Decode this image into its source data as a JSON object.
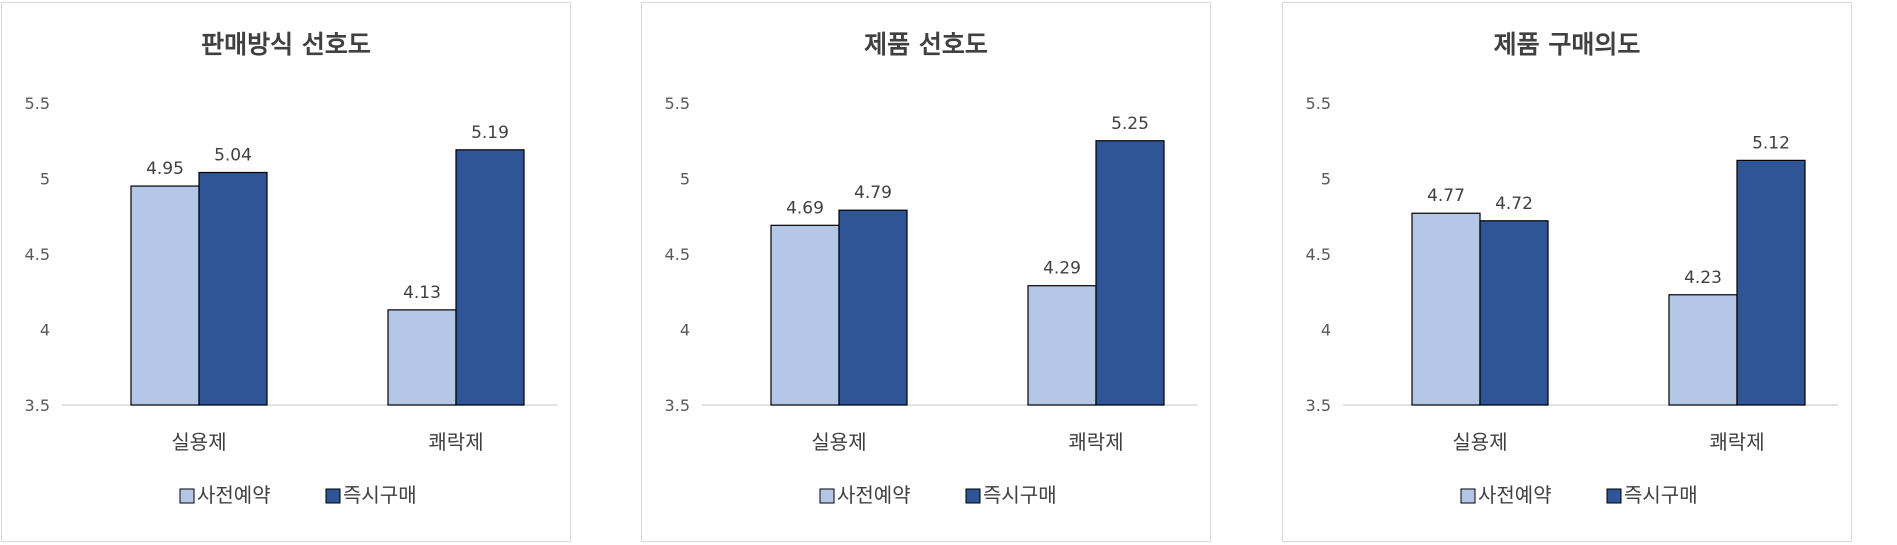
{
  "colors": {
    "pre_order": "#b4c7e7",
    "instant_buy": "#2f5597",
    "bar_stroke": "#000000",
    "axis": "#d9d9d9",
    "text": "#404040"
  },
  "chart_data": [
    {
      "type": "bar",
      "title": "판매방식 선호도",
      "categories": [
        "실용제",
        "쾌락제"
      ],
      "series": [
        {
          "name": "사전예약",
          "values": [
            4.95,
            4.13
          ]
        },
        {
          "name": "즉시구매",
          "values": [
            5.04,
            5.19
          ]
        }
      ],
      "yticks": [
        "3.5",
        "4",
        "4.5",
        "5",
        "5.5"
      ],
      "ylim": [
        3.5,
        5.5
      ],
      "grid": false,
      "legend": "bottom"
    },
    {
      "type": "bar",
      "title": "제품 선호도",
      "categories": [
        "실용제",
        "쾌락제"
      ],
      "series": [
        {
          "name": "사전예약",
          "values": [
            4.69,
            4.29
          ]
        },
        {
          "name": "즉시구매",
          "values": [
            4.79,
            5.25
          ]
        }
      ],
      "yticks": [
        "3.5",
        "4",
        "4.5",
        "5",
        "5.5"
      ],
      "ylim": [
        3.5,
        5.5
      ],
      "grid": false,
      "legend": "bottom"
    },
    {
      "type": "bar",
      "title": "제품 구매의도",
      "categories": [
        "실용제",
        "쾌락제"
      ],
      "series": [
        {
          "name": "사전예약",
          "values": [
            4.77,
            4.23
          ]
        },
        {
          "name": "즉시구매",
          "values": [
            4.72,
            5.12
          ]
        }
      ],
      "yticks": [
        "3.5",
        "4",
        "4.5",
        "5",
        "5.5"
      ],
      "ylim": [
        3.5,
        5.5
      ],
      "grid": false,
      "legend": "bottom"
    }
  ]
}
